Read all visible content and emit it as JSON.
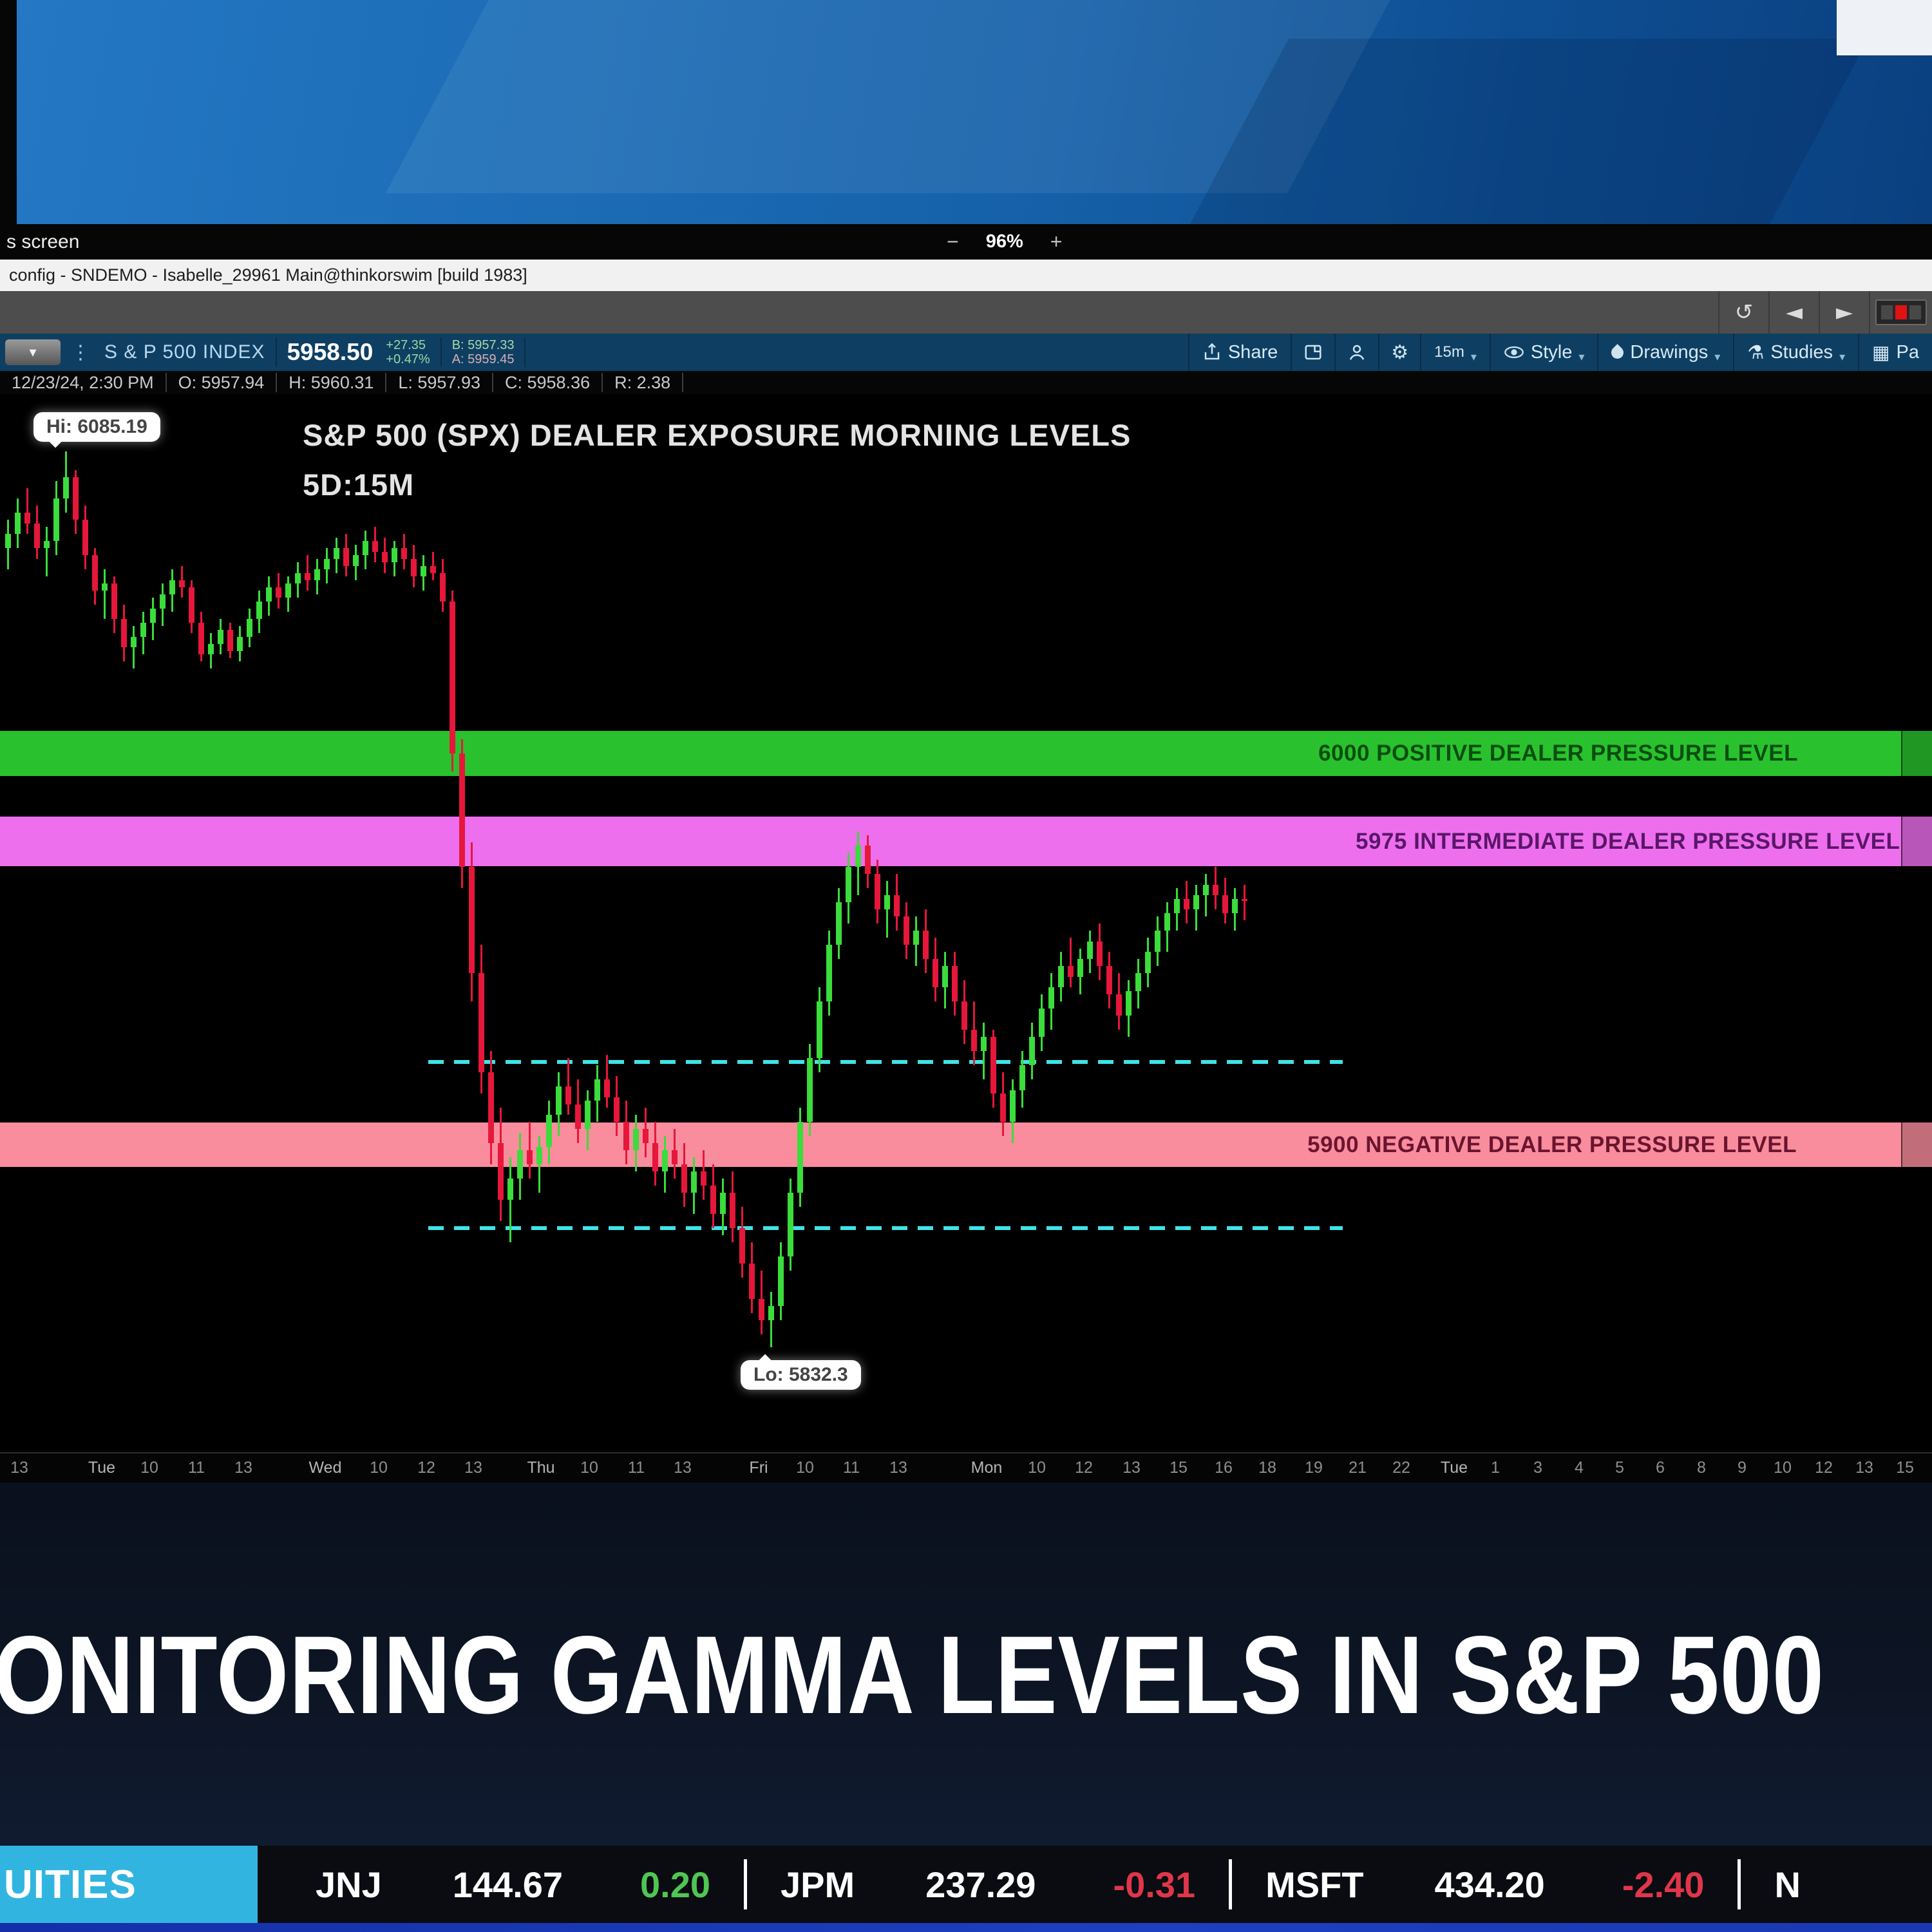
{
  "presentation_bar": {
    "left_text": "s screen",
    "zoom_minus": "−",
    "zoom_level": "96%",
    "zoom_plus": "+"
  },
  "window": {
    "title": "config - SNDEMO - Isabelle_29961 Main@thinkorswim [build 1983]"
  },
  "toolbar": {
    "undo_glyph": "↺",
    "back_glyph": "◄",
    "forward_glyph": "►"
  },
  "symbol_bar": {
    "dropdown_glyph": "▾",
    "dots_glyph": "⋮",
    "symbol": "S & P 500 INDEX",
    "last": "5958.50",
    "change": "+27.35",
    "change_pct": "+0.47%",
    "bid": "B: 5957.33",
    "ask": "A: 5959.45",
    "share_label": "Share",
    "gear_glyph": "⚙",
    "timeframe_label": "15m",
    "style_label": "Style",
    "drawings_label": "Drawings",
    "studies_label": "Studies",
    "studies_glyph": "⚗",
    "patterns_label": "Pa",
    "patterns_glyph": "▦",
    "caret_glyph": "▾"
  },
  "ohlc_bar": {
    "datetime": "12/23/24, 2:30 PM",
    "open": "O: 5957.94",
    "high": "H: 5960.31",
    "low": "L: 5957.93",
    "close": "C: 5958.36",
    "range": "R: 2.38"
  },
  "chart": {
    "title_line1": "S&P 500 (SPX) DEALER EXPOSURE MORNING LEVELS",
    "title_line2": "5D:15M",
    "hi_label": "Hi: 6085.19",
    "lo_label": "Lo: 5832.3"
  },
  "chart_data": {
    "type": "candlestick",
    "symbol": "S & P 500 INDEX (SPX)",
    "timeframe": "5 days of 15-minute bars (5D:15M)",
    "title": "S&P 500 (SPX) DEALER EXPOSURE MORNING LEVELS",
    "last_price": 5958.5,
    "hi_annotation": {
      "label": "Hi: 6085.19",
      "value": 6085.19
    },
    "lo_annotation": {
      "label": "Lo: 5832.3",
      "value": 5832.3
    },
    "up_color": "#3bdc3b",
    "down_color": "#e6173b",
    "levels": [
      {
        "label": "6000 POSITIVE DEALER PRESSURE LEVEL",
        "price": 6000,
        "band_color": "#29c22e",
        "text_color": "#0b4d10"
      },
      {
        "label": "5975 INTERMEDIATE DEALER PRESSURE LEVEL",
        "price": 5975,
        "band_color": "#ee6fee",
        "text_color": "#5a1668"
      },
      {
        "label": "5900 NEGATIVE DEALER PRESSURE LEVEL",
        "price": 5900,
        "band_color": "#f98d9d",
        "text_color": "#6b1430"
      }
    ],
    "dashed_lines": [
      {
        "price_est": 5913,
        "color": "#3fe3e6"
      },
      {
        "price_est": 5866,
        "color": "#3fe3e6"
      }
    ],
    "x_ticks": [
      {
        "label": "13",
        "x": 30
      },
      {
        "label": "Tue",
        "x": 158
      },
      {
        "label": "10",
        "x": 232
      },
      {
        "label": "11",
        "x": 305
      },
      {
        "label": "13",
        "x": 378
      },
      {
        "label": "Wed",
        "x": 505
      },
      {
        "label": "10",
        "x": 588
      },
      {
        "label": "12",
        "x": 662
      },
      {
        "label": "13",
        "x": 735
      },
      {
        "label": "Thu",
        "x": 840
      },
      {
        "label": "10",
        "x": 915
      },
      {
        "label": "11",
        "x": 988
      },
      {
        "label": "13",
        "x": 1060
      },
      {
        "label": "Fri",
        "x": 1178
      },
      {
        "label": "10",
        "x": 1250
      },
      {
        "label": "11",
        "x": 1322
      },
      {
        "label": "13",
        "x": 1395
      },
      {
        "label": "Mon",
        "x": 1532
      },
      {
        "label": "10",
        "x": 1610
      },
      {
        "label": "12",
        "x": 1683
      },
      {
        "label": "13",
        "x": 1757
      },
      {
        "label": "15",
        "x": 1830
      },
      {
        "label": "16",
        "x": 1900
      },
      {
        "label": "18",
        "x": 1968
      },
      {
        "label": "19",
        "x": 2040
      },
      {
        "label": "21",
        "x": 2108
      },
      {
        "label": "22",
        "x": 2176
      },
      {
        "label": "Tue",
        "x": 2258
      },
      {
        "label": "1",
        "x": 2322
      },
      {
        "label": "3",
        "x": 2388
      },
      {
        "label": "4",
        "x": 2452
      },
      {
        "label": "5",
        "x": 2515
      },
      {
        "label": "6",
        "x": 2578
      },
      {
        "label": "8",
        "x": 2642
      },
      {
        "label": "9",
        "x": 2705
      },
      {
        "label": "10",
        "x": 2768
      },
      {
        "label": "12",
        "x": 2832
      },
      {
        "label": "13",
        "x": 2895
      },
      {
        "label": "15",
        "x": 2958
      }
    ],
    "candles": [
      [
        6058,
        6066,
        6052,
        6062
      ],
      [
        6062,
        6072,
        6058,
        6068
      ],
      [
        6068,
        6075,
        6062,
        6065
      ],
      [
        6065,
        6070,
        6055,
        6058
      ],
      [
        6058,
        6064,
        6050,
        6060
      ],
      [
        6060,
        6077,
        6056,
        6072
      ],
      [
        6072,
        6085.19,
        6068,
        6078
      ],
      [
        6078,
        6080,
        6062,
        6066
      ],
      [
        6066,
        6070,
        6052,
        6056
      ],
      [
        6056,
        6058,
        6042,
        6046
      ],
      [
        6046,
        6052,
        6038,
        6048
      ],
      [
        6048,
        6050,
        6034,
        6038
      ],
      [
        6038,
        6042,
        6026,
        6030
      ],
      [
        6030,
        6036,
        6024,
        6033
      ],
      [
        6033,
        6040,
        6028,
        6037
      ],
      [
        6037,
        6044,
        6032,
        6041
      ],
      [
        6041,
        6048,
        6036,
        6045
      ],
      [
        6045,
        6052,
        6040,
        6049
      ],
      [
        6049,
        6053,
        6044,
        6047
      ],
      [
        6047,
        6049,
        6034,
        6037
      ],
      [
        6037,
        6040,
        6026,
        6028
      ],
      [
        6028,
        6034,
        6024,
        6031
      ],
      [
        6031,
        6038,
        6028,
        6035
      ],
      [
        6035,
        6037,
        6027,
        6029
      ],
      [
        6029,
        6036,
        6026,
        6033
      ],
      [
        6033,
        6041,
        6030,
        6038
      ],
      [
        6038,
        6046,
        6034,
        6043
      ],
      [
        6043,
        6050,
        6039,
        6047
      ],
      [
        6047,
        6051,
        6041,
        6044
      ],
      [
        6044,
        6050,
        6040,
        6048
      ],
      [
        6048,
        6054,
        6044,
        6051
      ],
      [
        6051,
        6056,
        6046,
        6049
      ],
      [
        6049,
        6055,
        6045,
        6052
      ],
      [
        6052,
        6058,
        6048,
        6055
      ],
      [
        6055,
        6061,
        6051,
        6058
      ],
      [
        6058,
        6062,
        6050,
        6053
      ],
      [
        6053,
        6059,
        6049,
        6056
      ],
      [
        6056,
        6063,
        6052,
        6060
      ],
      [
        6060,
        6064,
        6054,
        6057
      ],
      [
        6057,
        6061,
        6051,
        6054
      ],
      [
        6054,
        6060,
        6050,
        6058
      ],
      [
        6058,
        6062,
        6052,
        6055
      ],
      [
        6055,
        6059,
        6047,
        6050
      ],
      [
        6050,
        6056,
        6046,
        6053
      ],
      [
        6053,
        6057,
        6049,
        6051
      ],
      [
        6051,
        6055,
        6040,
        6043
      ],
      [
        6043,
        6046,
        5995,
        6000
      ],
      [
        6000,
        6004,
        5962,
        5968
      ],
      [
        5968,
        5975,
        5930,
        5938
      ],
      [
        5938,
        5946,
        5904,
        5910
      ],
      [
        5910,
        5916,
        5884,
        5890
      ],
      [
        5890,
        5900,
        5868,
        5874
      ],
      [
        5874,
        5886,
        5862,
        5880
      ],
      [
        5880,
        5893,
        5874,
        5888
      ],
      [
        5888,
        5896,
        5880,
        5884
      ],
      [
        5884,
        5892,
        5876,
        5889
      ],
      [
        5889,
        5902,
        5884,
        5898
      ],
      [
        5898,
        5910,
        5892,
        5906
      ],
      [
        5906,
        5914,
        5898,
        5901
      ],
      [
        5901,
        5908,
        5890,
        5894
      ],
      [
        5894,
        5905,
        5888,
        5902
      ],
      [
        5902,
        5912,
        5896,
        5908
      ],
      [
        5908,
        5915,
        5900,
        5903
      ],
      [
        5903,
        5909,
        5892,
        5896
      ],
      [
        5896,
        5902,
        5884,
        5888
      ],
      [
        5888,
        5898,
        5882,
        5894
      ],
      [
        5894,
        5900,
        5886,
        5890
      ],
      [
        5890,
        5896,
        5878,
        5882
      ],
      [
        5882,
        5892,
        5876,
        5888
      ],
      [
        5888,
        5894,
        5880,
        5884
      ],
      [
        5884,
        5890,
        5872,
        5876
      ],
      [
        5876,
        5886,
        5870,
        5882
      ],
      [
        5882,
        5888,
        5874,
        5878
      ],
      [
        5878,
        5884,
        5866,
        5870
      ],
      [
        5870,
        5880,
        5864,
        5876
      ],
      [
        5876,
        5882,
        5862,
        5866
      ],
      [
        5866,
        5872,
        5852,
        5856
      ],
      [
        5856,
        5862,
        5842,
        5846
      ],
      [
        5846,
        5854,
        5836,
        5840
      ],
      [
        5840,
        5848,
        5832.3,
        5844
      ],
      [
        5844,
        5862,
        5840,
        5858
      ],
      [
        5858,
        5880,
        5854,
        5876
      ],
      [
        5876,
        5900,
        5872,
        5896
      ],
      [
        5896,
        5918,
        5892,
        5914
      ],
      [
        5914,
        5934,
        5910,
        5930
      ],
      [
        5930,
        5950,
        5926,
        5946
      ],
      [
        5946,
        5962,
        5942,
        5958
      ],
      [
        5958,
        5972,
        5952,
        5968
      ],
      [
        5968,
        5978,
        5960,
        5974
      ],
      [
        5974,
        5977,
        5962,
        5966
      ],
      [
        5966,
        5970,
        5952,
        5956
      ],
      [
        5956,
        5964,
        5948,
        5960
      ],
      [
        5960,
        5966,
        5950,
        5954
      ],
      [
        5954,
        5958,
        5942,
        5946
      ],
      [
        5946,
        5954,
        5940,
        5950
      ],
      [
        5950,
        5956,
        5938,
        5942
      ],
      [
        5942,
        5948,
        5930,
        5934
      ],
      [
        5934,
        5944,
        5928,
        5940
      ],
      [
        5940,
        5944,
        5926,
        5930
      ],
      [
        5930,
        5936,
        5918,
        5922
      ],
      [
        5922,
        5930,
        5912,
        5916
      ],
      [
        5916,
        5924,
        5908,
        5920
      ],
      [
        5920,
        5922,
        5900,
        5904
      ],
      [
        5904,
        5910,
        5892,
        5896
      ],
      [
        5896,
        5908,
        5890,
        5905
      ],
      [
        5905,
        5916,
        5900,
        5912
      ],
      [
        5912,
        5924,
        5908,
        5920
      ],
      [
        5920,
        5932,
        5916,
        5928
      ],
      [
        5928,
        5938,
        5922,
        5934
      ],
      [
        5934,
        5944,
        5930,
        5940
      ],
      [
        5940,
        5948,
        5934,
        5937
      ],
      [
        5937,
        5945,
        5932,
        5942
      ],
      [
        5942,
        5950,
        5938,
        5947
      ],
      [
        5947,
        5952,
        5936,
        5940
      ],
      [
        5940,
        5944,
        5928,
        5932
      ],
      [
        5932,
        5938,
        5922,
        5926
      ],
      [
        5926,
        5936,
        5920,
        5933
      ],
      [
        5933,
        5942,
        5928,
        5938
      ],
      [
        5938,
        5948,
        5934,
        5944
      ],
      [
        5944,
        5954,
        5940,
        5950
      ],
      [
        5950,
        5958,
        5944,
        5955
      ],
      [
        5955,
        5962,
        5950,
        5959
      ],
      [
        5959,
        5964,
        5952,
        5956
      ],
      [
        5956,
        5963,
        5950,
        5960
      ],
      [
        5960,
        5966,
        5954,
        5963
      ],
      [
        5963,
        5968,
        5956,
        5960
      ],
      [
        5960,
        5965,
        5952,
        5955
      ],
      [
        5955,
        5962,
        5950,
        5959
      ],
      [
        5959,
        5963,
        5953,
        5958.5
      ]
    ]
  },
  "banner": {
    "headline": "ONITORING GAMMA LEVELS IN S&P 500"
  },
  "ticker": {
    "category": "UITIES",
    "up_color": "#4fc653",
    "down_color": "#e0364a",
    "items": [
      {
        "symbol": "JNJ",
        "price": "144.67",
        "change": "0.20",
        "dir": "up"
      },
      {
        "symbol": "JPM",
        "price": "237.29",
        "change": "-0.31",
        "dir": "down"
      },
      {
        "symbol": "MSFT",
        "price": "434.20",
        "change": "-2.40",
        "dir": "down"
      },
      {
        "symbol": "N",
        "price": "",
        "change": "",
        "dir": "none"
      }
    ]
  }
}
